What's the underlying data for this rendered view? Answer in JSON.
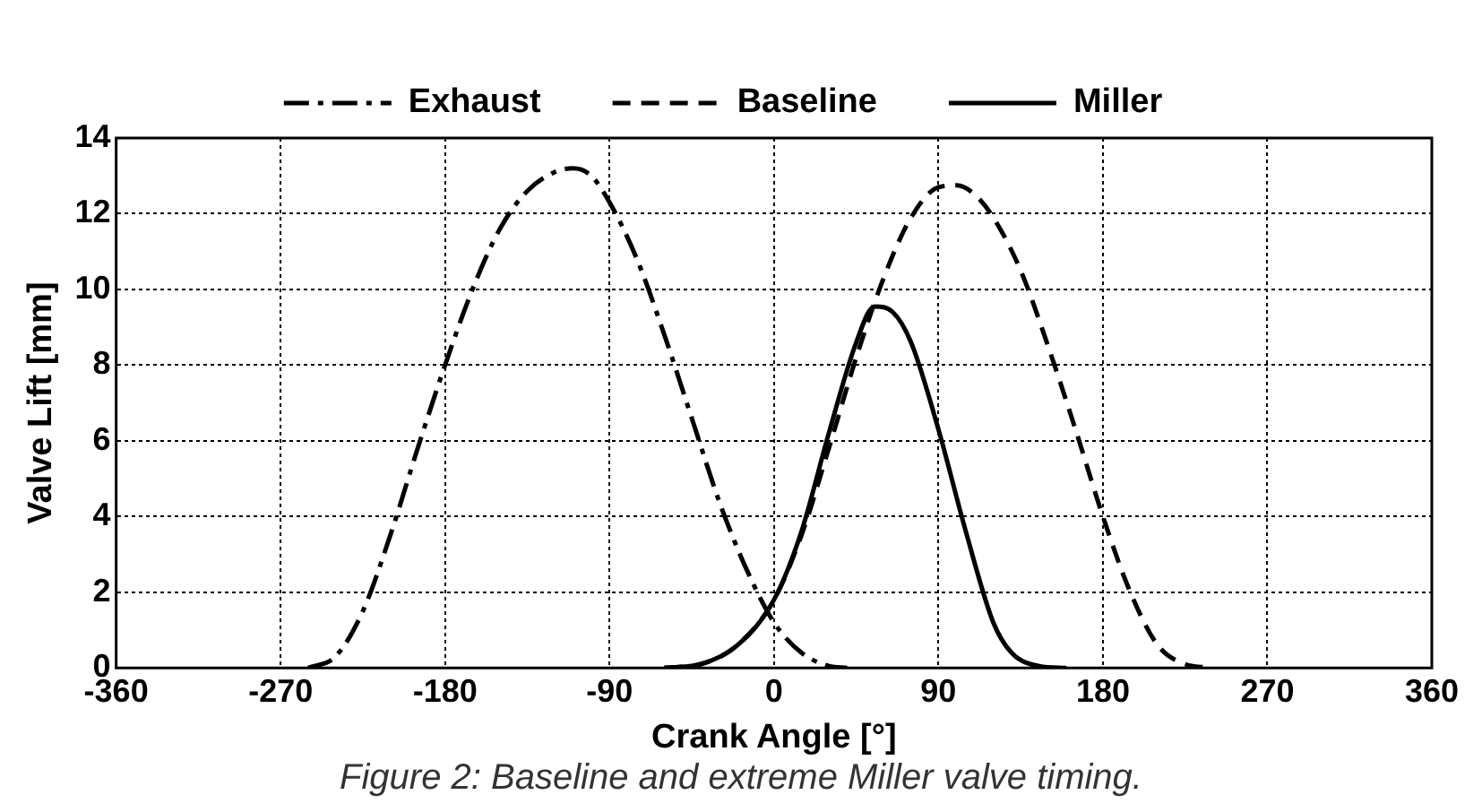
{
  "chart_data": {
    "type": "line",
    "xlabel": "Crank Angle [°]",
    "ylabel": "Valve Lift [mm]",
    "xlim": [
      -360,
      360
    ],
    "xticks": [
      -360,
      -270,
      -180,
      -90,
      0,
      90,
      180,
      270,
      360
    ],
    "ylim": [
      0,
      14
    ],
    "yticks": [
      0,
      2,
      4,
      6,
      8,
      10,
      12,
      14
    ],
    "grid": true,
    "legend": "top",
    "marker": "none",
    "annotations": [
      "Figure 2: Baseline and extreme Miller valve timing."
    ],
    "series": [
      {
        "name": "Exhaust",
        "color": "#000000",
        "line_style": "dotted",
        "x": [
          -255,
          -240,
          -225,
          -210,
          -195,
          -180,
          -165,
          -150,
          -135,
          -120,
          -110,
          -100,
          -90,
          -75,
          -60,
          -45,
          -30,
          -15,
          0,
          15,
          30,
          40
        ],
        "values": [
          0,
          0.3,
          1.5,
          3.5,
          5.8,
          8,
          10,
          11.6,
          12.6,
          13.1,
          13.2,
          13,
          12.3,
          10.8,
          8.8,
          6.6,
          4.4,
          2.6,
          1.2,
          0.4,
          0.05,
          0
        ]
      },
      {
        "name": "Baseline",
        "color": "#000000",
        "line_style": "dashed",
        "x": [
          -60,
          -40,
          -20,
          0,
          15,
          30,
          45,
          60,
          75,
          90,
          100,
          110,
          120,
          135,
          150,
          165,
          180,
          195,
          210,
          225,
          240
        ],
        "values": [
          0,
          0.1,
          0.6,
          1.8,
          3.5,
          5.8,
          8.2,
          10.3,
          11.9,
          12.7,
          12.75,
          12.5,
          11.9,
          10.5,
          8.5,
          6.3,
          4,
          2,
          0.6,
          0.1,
          0
        ]
      },
      {
        "name": "Miller",
        "color": "#000000",
        "line_style": "solid",
        "x": [
          -60,
          -40,
          -20,
          0,
          15,
          30,
          45,
          55,
          65,
          75,
          90,
          105,
          120,
          130,
          145,
          160
        ],
        "values": [
          0,
          0.1,
          0.6,
          1.8,
          3.6,
          6.2,
          8.6,
          9.55,
          9.4,
          8.6,
          6.3,
          3.6,
          1.2,
          0.4,
          0.05,
          0
        ]
      }
    ]
  }
}
